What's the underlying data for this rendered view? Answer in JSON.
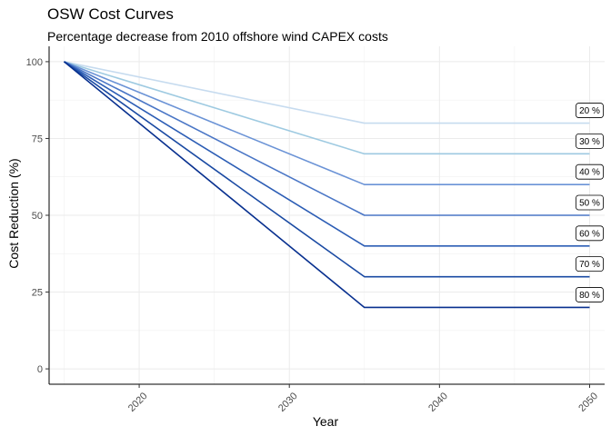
{
  "chart_data": {
    "type": "line",
    "title": "OSW Cost Curves",
    "subtitle": "Percentage decrease from 2010 offshore wind CAPEX costs",
    "xlabel": "Year",
    "ylabel": "Cost Reduction (%)",
    "xlim": [
      2014.0,
      2051.0
    ],
    "ylim": [
      0,
      100
    ],
    "xticks": [
      2020,
      2030,
      2040,
      2050
    ],
    "yticks": [
      0,
      25,
      50,
      75,
      100
    ],
    "grid": true,
    "x": [
      2015,
      2035,
      2050
    ],
    "series": [
      {
        "label": "20 %",
        "values": [
          100,
          80,
          80
        ],
        "color": "#c6dbef"
      },
      {
        "label": "30 %",
        "values": [
          100,
          70,
          70
        ],
        "color": "#9ecae1"
      },
      {
        "label": "40 %",
        "values": [
          100,
          60,
          60
        ],
        "color": "#6b93d6"
      },
      {
        "label": "50 %",
        "values": [
          100,
          50,
          50
        ],
        "color": "#4a76c6"
      },
      {
        "label": "60 %",
        "values": [
          100,
          40,
          40
        ],
        "color": "#2c5db5"
      },
      {
        "label": "70 %",
        "values": [
          100,
          30,
          30
        ],
        "color": "#1a4aa3"
      },
      {
        "label": "80 %",
        "values": [
          100,
          20,
          20
        ],
        "color": "#08308f"
      }
    ]
  }
}
